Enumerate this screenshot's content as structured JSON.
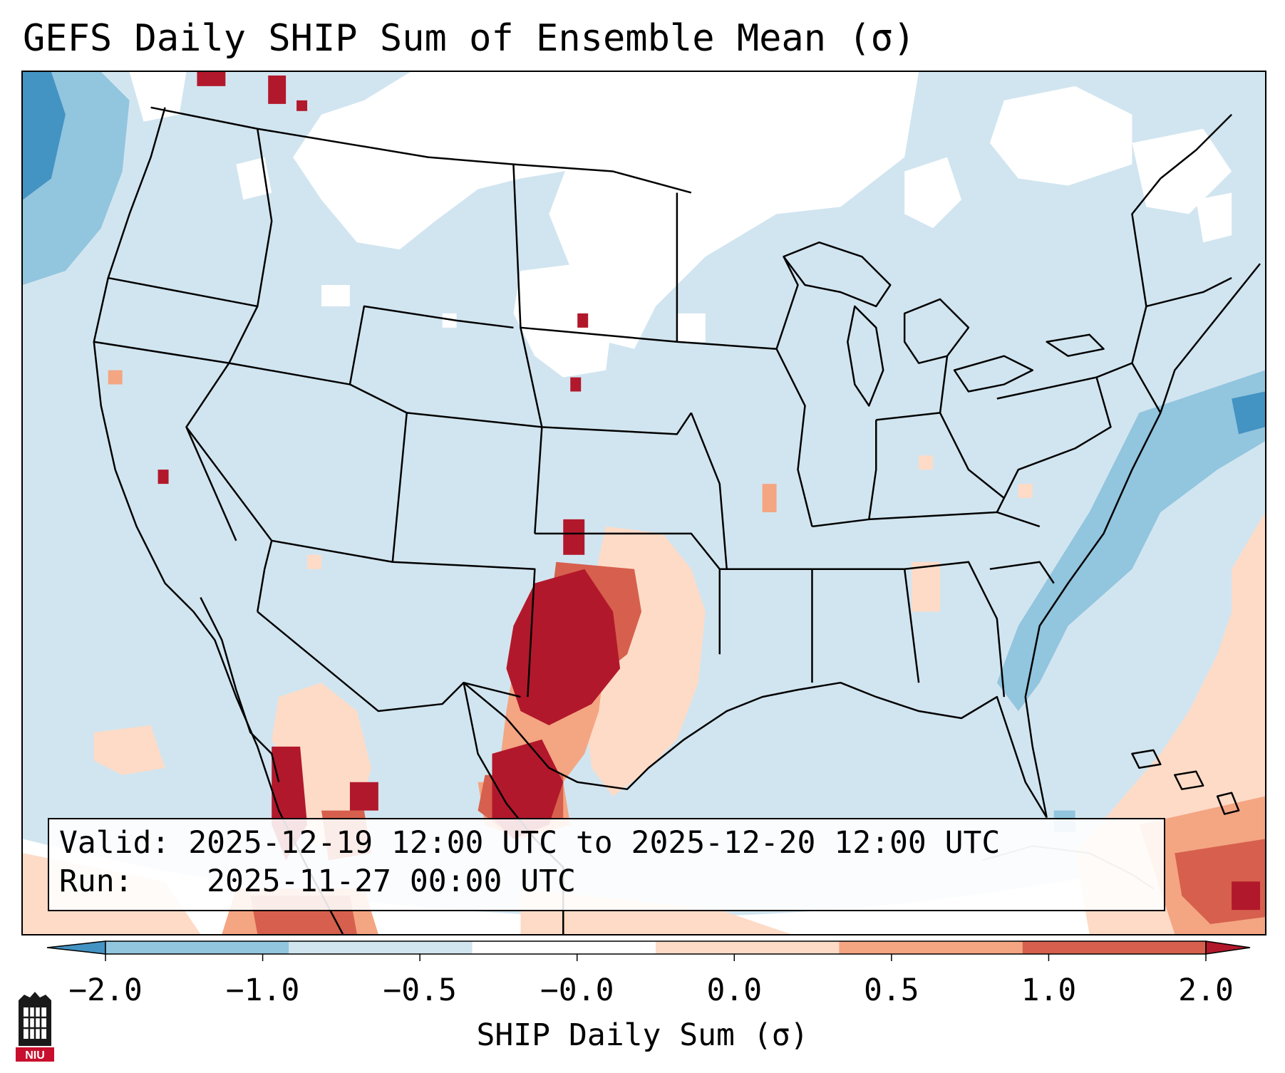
{
  "title": "GEFS Daily SHIP Sum of Ensemble Mean (σ)",
  "info": {
    "valid_label": "Valid:",
    "valid_value": "2025-12-19 12:00 UTC to 2025-12-20 12:00 UTC",
    "run_label": "Run:",
    "run_value": "2025-11-27 00:00 UTC"
  },
  "colorbar": {
    "label": "SHIP Daily Sum (σ)",
    "ticks": [
      "−2.0",
      "−1.0",
      "−0.5",
      "−0.0",
      "0.0",
      "0.5",
      "1.0",
      "2.0"
    ],
    "bins": [
      {
        "color": "#4393c3"
      },
      {
        "color": "#92c5de"
      },
      {
        "color": "#d1e5f0"
      },
      {
        "color": "#ffffff"
      },
      {
        "color": "#fddbc7"
      },
      {
        "color": "#f4a582"
      },
      {
        "color": "#d6604d"
      },
      {
        "color": "#b2182b"
      }
    ],
    "extend": "both"
  },
  "colors": {
    "background_field": "#d1e5f0",
    "negative_mid": "#92c5de",
    "neutral": "#ffffff",
    "positive_light": "#fddbc7",
    "positive_mid": "#f4a582",
    "positive_strong": "#d6604d",
    "positive_max": "#b2182b",
    "borders": "#000000"
  },
  "logo": {
    "icon": "niu-logo-icon",
    "text": "NIU"
  }
}
